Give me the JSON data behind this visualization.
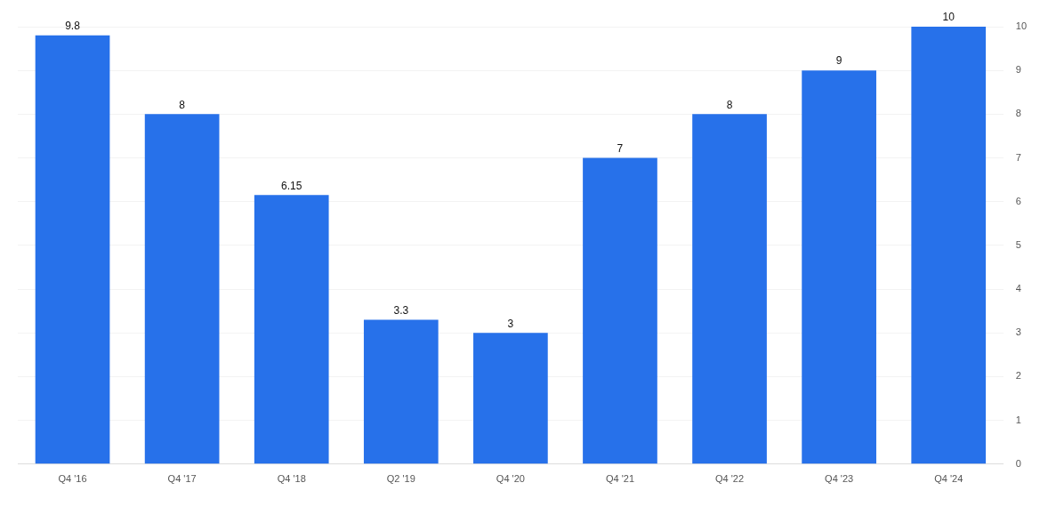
{
  "chart_data": {
    "type": "bar",
    "categories": [
      "Q4 '16",
      "Q4 '17",
      "Q4 '18",
      "Q2 '19",
      "Q4 '20",
      "Q4 '21",
      "Q4 '22",
      "Q4 '23",
      "Q4 '24"
    ],
    "values": [
      9.8,
      8,
      6.15,
      3.3,
      3,
      7,
      8,
      9,
      10
    ],
    "color": "#2771ea",
    "ylim": [
      0,
      10
    ],
    "yticks": [
      0,
      1,
      2,
      3,
      4,
      5,
      6,
      7,
      8,
      9,
      10
    ],
    "grid": "y",
    "data_labels": true,
    "legend": false
  }
}
